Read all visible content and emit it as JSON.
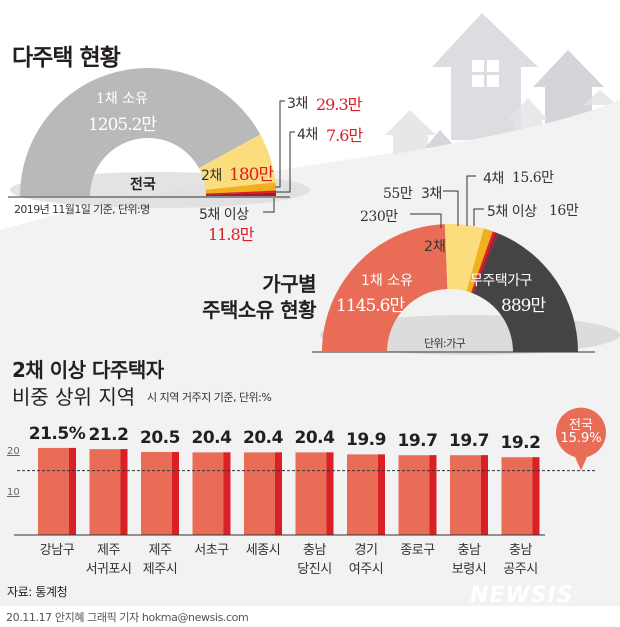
{
  "chart_data": [
    {
      "type": "pie",
      "subtype": "half-donut",
      "title": "다주택 현황",
      "center_label": "전국",
      "note": "2019년 11월1일 기준, 단위:명",
      "slices": [
        {
          "name": "1채 소유",
          "value": 1205.2,
          "label": "1205.2만",
          "color": "#b9b9b9"
        },
        {
          "name": "2채",
          "value": 180,
          "label": "180만",
          "color": "#fbdd7e"
        },
        {
          "name": "3채",
          "value": 29.3,
          "label": "29.3만",
          "color": "#f2b01e"
        },
        {
          "name": "4채",
          "value": 7.6,
          "label": "7.6만",
          "color": "#d92027"
        },
        {
          "name": "5채 이상",
          "value": 11.8,
          "label": "11.8만",
          "color": "#a8182a"
        }
      ]
    },
    {
      "type": "pie",
      "subtype": "half-donut",
      "title_line1": "가구별",
      "title_line2": "주택소유 현황",
      "note": "단위:가구",
      "slices": [
        {
          "name": "1채 소유",
          "value": 1145.6,
          "label": "1145.6만",
          "color": "#e96d56"
        },
        {
          "name": "2채",
          "value": 230,
          "label": "230만",
          "color": "#fbdd7e"
        },
        {
          "name": "3채",
          "value": 55,
          "label": "55만",
          "color": "#f2b01e"
        },
        {
          "name": "4채",
          "value": 15.6,
          "label": "15.6만",
          "color": "#d92027"
        },
        {
          "name": "5채 이상",
          "value": 16,
          "label": "16만",
          "color": "#a8182a"
        },
        {
          "name": "무주택가구",
          "value": 889,
          "label": "889만",
          "color": "#444444"
        }
      ]
    },
    {
      "type": "bar",
      "title_line1": "2채 이상 다주택자",
      "title_line2": "비중 상위 지역",
      "subtitle": "시 지역 거주지 기준, 단위:%",
      "categories": [
        [
          "강남구"
        ],
        [
          "제주",
          "서귀포시"
        ],
        [
          "제주",
          "제주시"
        ],
        [
          "서초구"
        ],
        [
          "세종시"
        ],
        [
          "충남",
          "당진시"
        ],
        [
          "경기",
          "여주시"
        ],
        [
          "종로구"
        ],
        [
          "충남",
          "보령시"
        ],
        [
          "충남",
          "공주시"
        ]
      ],
      "values": [
        21.5,
        21.2,
        20.5,
        20.4,
        20.4,
        20.4,
        19.9,
        19.7,
        19.7,
        19.2
      ],
      "value_labels": [
        "21.5%",
        "21.2",
        "20.5",
        "20.4",
        "20.4",
        "20.4",
        "19.9",
        "19.7",
        "19.7",
        "19.2"
      ],
      "yticks": [
        "20",
        "10"
      ],
      "ytick_values": [
        20,
        10
      ],
      "ylim": [
        0,
        22
      ],
      "reference": {
        "label_line1": "전국",
        "label_line2": "15.9%",
        "value": 15.9
      },
      "bar_color": "#e96d56",
      "bar_edge_color": "#d92027"
    }
  ],
  "source": "자료: 통계청",
  "credit": "20.11.17 안지혜 그래픽 기자 hokma@newsis.com",
  "watermark": "NEWSIS"
}
